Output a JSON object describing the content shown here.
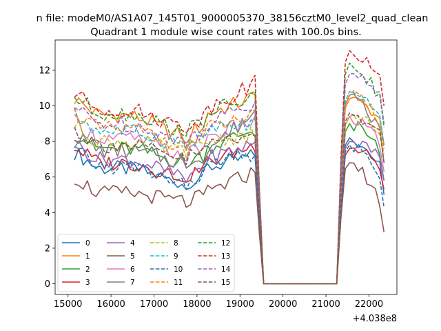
{
  "chart_data": {
    "type": "line",
    "suptitle": "n file: modeM0/AS1A07_145T01_9000005370_38156cztM0_level2_quad_clean",
    "title": "Quadrant 1 module wise count rates with 100.0s bins.",
    "xlabel": "",
    "ylabel": "",
    "x_offset_label": "+4.038e8",
    "xlim": [
      14700,
      22650
    ],
    "ylim": [
      -0.6,
      13.7
    ],
    "x_ticks": [
      15000,
      16000,
      17000,
      18000,
      19000,
      20000,
      21000,
      22000
    ],
    "x_tick_labels": [
      "15000",
      "16000",
      "17000",
      "18000",
      "19000",
      "20000",
      "21000",
      "22000"
    ],
    "y_ticks": [
      0,
      2,
      4,
      6,
      8,
      10,
      12
    ],
    "y_tick_labels": [
      "0",
      "2",
      "4",
      "6",
      "8",
      "10",
      "12"
    ],
    "grid": false,
    "legend_placement": "lower-left",
    "legend_ncol": 4,
    "x_segments": [
      {
        "start": 15150,
        "end": 19350,
        "step": 100
      },
      {
        "start": 19550,
        "end": 21250,
        "step": 100
      },
      {
        "start": 21350,
        "end": 22350,
        "step": 100
      }
    ],
    "series": [
      {
        "name": "0",
        "color": "#1f77b4",
        "dash": "solid",
        "base": 6.5,
        "tail": 7.2,
        "end": 6.2,
        "spike": 8.2,
        "dip": 5.6
      },
      {
        "name": "1",
        "color": "#ff7f0e",
        "dash": "solid",
        "base": 9.5,
        "tail": 10.5,
        "end": 9.0,
        "spike": 10.4,
        "dip": 8.2
      },
      {
        "name": "2",
        "color": "#2ca02c",
        "dash": "solid",
        "base": 7.6,
        "tail": 8.7,
        "end": 7.0,
        "spike": 9.0,
        "dip": 6.8
      },
      {
        "name": "3",
        "color": "#d62728",
        "dash": "solid",
        "base": 6.8,
        "tail": 7.8,
        "end": 6.5,
        "spike": 7.6,
        "dip": 6.0
      },
      {
        "name": "4",
        "color": "#9467bd",
        "dash": "solid",
        "base": 7.0,
        "tail": 7.9,
        "end": 7.0,
        "spike": 8.0,
        "dip": 6.0
      },
      {
        "name": "5",
        "color": "#8c564b",
        "dash": "solid",
        "base": 5.1,
        "tail": 6.3,
        "end": 4.1,
        "spike": 6.8,
        "dip": 4.6
      },
      {
        "name": "6",
        "color": "#e377c2",
        "dash": "solid",
        "base": 8.2,
        "tail": 9.2,
        "end": 7.5,
        "spike": 9.4,
        "dip": 7.2
      },
      {
        "name": "7",
        "color": "#7f7f7f",
        "dash": "solid",
        "base": 7.5,
        "tail": 9.6,
        "end": 8.0,
        "spike": 10.6,
        "dip": 6.8
      },
      {
        "name": "8",
        "color": "#bcbd22",
        "dash": "dashed",
        "base": 8.0,
        "tail": 8.4,
        "end": 8.5,
        "spike": 9.4,
        "dip": 7.4
      },
      {
        "name": "9",
        "color": "#17becf",
        "dash": "dashed",
        "base": 8.6,
        "tail": 9.0,
        "end": 9.0,
        "spike": 10.8,
        "dip": 7.8
      },
      {
        "name": "10",
        "color": "#1f77b4",
        "dash": "dashed",
        "base": 6.6,
        "tail": 7.3,
        "end": 5.5,
        "spike": 7.8,
        "dip": 5.6
      },
      {
        "name": "11",
        "color": "#ff7f0e",
        "dash": "dashed",
        "base": 8.7,
        "tail": 9.4,
        "end": 8.8,
        "spike": 10.6,
        "dip": 7.8
      },
      {
        "name": "12",
        "color": "#2ca02c",
        "dash": "dashed",
        "base": 9.6,
        "tail": 10.5,
        "end": 10.0,
        "spike": 12.4,
        "dip": 8.6
      },
      {
        "name": "13",
        "color": "#d62728",
        "dash": "dashed",
        "base": 9.8,
        "tail": 11.3,
        "end": 11.2,
        "spike": 13.1,
        "dip": 8.8
      },
      {
        "name": "14",
        "color": "#9467bd",
        "dash": "dashed",
        "base": 9.0,
        "tail": 10.2,
        "end": 10.2,
        "spike": 11.8,
        "dip": 8.0
      },
      {
        "name": "15",
        "color": "#8c564b",
        "dash": "dashed",
        "base": 7.8,
        "tail": 8.6,
        "end": 8.0,
        "spike": 9.6,
        "dip": 7.0
      }
    ]
  }
}
